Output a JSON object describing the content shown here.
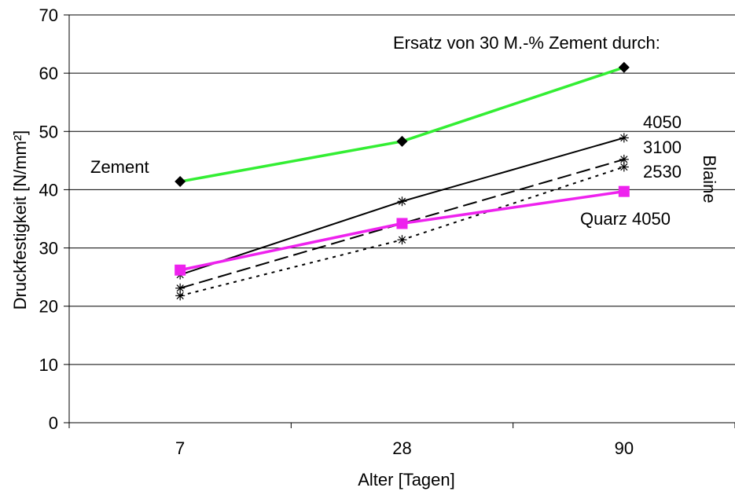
{
  "chart_data": {
    "type": "line",
    "categories": [
      "7",
      "28",
      "90"
    ],
    "xlabel": "Alter [Tagen]",
    "ylabel": "Druckfestigkeit [N/mm²]",
    "ylim": [
      0,
      70
    ],
    "yticks": [
      0,
      10,
      20,
      30,
      40,
      50,
      60,
      70
    ],
    "grid": "horizontal",
    "series": [
      {
        "name": "Zement",
        "values": [
          41.4,
          48.3,
          61.0
        ],
        "color": "#33ee33",
        "marker": "diamond",
        "dash": "solid"
      },
      {
        "name": "4050",
        "values": [
          25.4,
          38.0,
          48.9
        ],
        "color": "#000000",
        "marker": "asterisk",
        "dash": "solid"
      },
      {
        "name": "3100",
        "values": [
          23.1,
          34.2,
          45.2
        ],
        "color": "#000000",
        "marker": "asterisk",
        "dash": "long-dash"
      },
      {
        "name": "2530",
        "values": [
          21.8,
          31.4,
          43.9
        ],
        "color": "#000000",
        "marker": "asterisk",
        "dash": "dotted"
      },
      {
        "name": "Quarz 4050",
        "values": [
          26.2,
          34.2,
          39.7
        ],
        "color": "#ee22ee",
        "marker": "square",
        "dash": "solid"
      }
    ],
    "annotations": {
      "title_note": "Ersatz von 30 M.-% Zement durch:",
      "blaine": "Blaine"
    }
  }
}
